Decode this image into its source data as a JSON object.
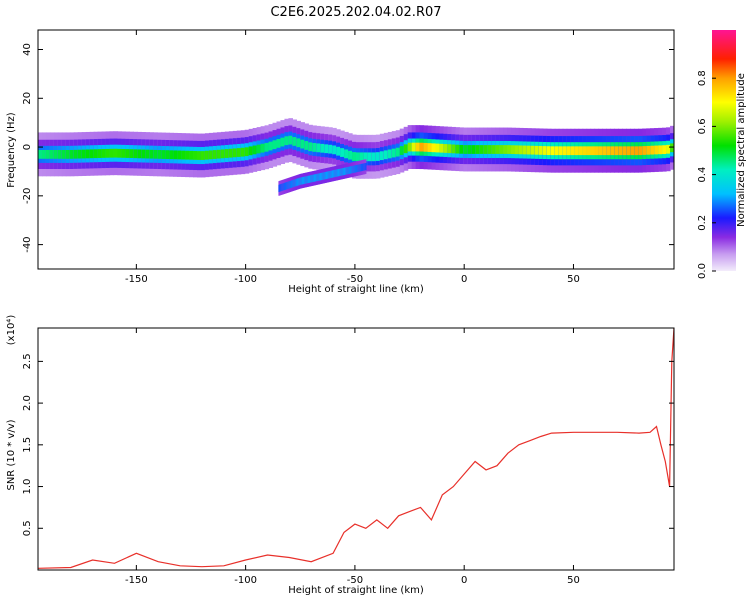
{
  "chart_data": [
    {
      "type": "heatmap",
      "title": "C2E6.2025.202.04.02.R07",
      "xlabel": "Height of straight line (km)",
      "ylabel": "Frequency (Hz)",
      "xlim": [
        -195,
        96
      ],
      "ylim": [
        -50,
        48
      ],
      "xticks": [
        -150,
        -100,
        -50,
        0,
        50
      ],
      "yticks": [
        -40,
        -20,
        0,
        20,
        40
      ],
      "colorbar": {
        "label": "Normalized spectral amplitude",
        "range": [
          0,
          1
        ],
        "ticks": [
          0.0,
          0.2,
          0.4,
          0.6,
          0.8
        ],
        "tick_labels": [
          "0.0",
          "0.2",
          "0.4",
          "0.6",
          "0.8"
        ],
        "colormap": "rainbow"
      },
      "ridge": {
        "x": [
          -195,
          -180,
          -160,
          -140,
          -120,
          -100,
          -90,
          -80,
          -70,
          -60,
          -50,
          -40,
          -30,
          -25,
          -20,
          0,
          20,
          40,
          60,
          80,
          93,
          96
        ],
        "y": [
          -3,
          -3,
          -2.5,
          -3,
          -3.5,
          -2,
          0,
          3,
          0,
          -1,
          -4,
          -4,
          -2,
          0,
          0,
          -1,
          -1,
          -1.5,
          -1.5,
          -1.5,
          -1,
          0
        ],
        "amplitude": [
          0.45,
          0.5,
          0.55,
          0.5,
          0.55,
          0.55,
          0.45,
          0.45,
          0.45,
          0.4,
          0.45,
          0.4,
          0.45,
          0.6,
          0.8,
          0.5,
          0.6,
          0.7,
          0.75,
          0.8,
          0.7,
          0.5
        ]
      },
      "branch": {
        "x": [
          -85,
          -75,
          -65,
          -55,
          -45
        ],
        "y": [
          -17,
          -14,
          -12,
          -10,
          -8
        ],
        "amplitude": [
          0.25,
          0.3,
          0.3,
          0.3,
          0.25
        ]
      }
    },
    {
      "type": "line",
      "xlabel": "Height of straight line (km)",
      "ylabel": "SNR (10 * v/v)",
      "multiplier": "(x10⁴)",
      "xlim": [
        -195,
        96
      ],
      "ylim": [
        0,
        2.9
      ],
      "xticks": [
        -150,
        -100,
        -50,
        0,
        50
      ],
      "yticks": [
        0.5,
        1.0,
        1.5,
        2.0,
        2.5
      ],
      "ytick_labels": [
        "0.5",
        "1.0",
        "1.5",
        "2.0",
        "2.5"
      ],
      "series": [
        {
          "color": "#e8302a",
          "x": [
            -195,
            -180,
            -170,
            -160,
            -150,
            -140,
            -130,
            -120,
            -110,
            -100,
            -90,
            -80,
            -70,
            -60,
            -55,
            -50,
            -45,
            -40,
            -35,
            -30,
            -25,
            -20,
            -15,
            -10,
            -5,
            0,
            5,
            10,
            15,
            20,
            25,
            30,
            35,
            40,
            50,
            60,
            70,
            80,
            85,
            88,
            90,
            92,
            94,
            95,
            96
          ],
          "y": [
            0.02,
            0.03,
            0.12,
            0.08,
            0.2,
            0.1,
            0.05,
            0.04,
            0.05,
            0.12,
            0.18,
            0.15,
            0.1,
            0.2,
            0.45,
            0.55,
            0.5,
            0.6,
            0.5,
            0.65,
            0.7,
            0.75,
            0.6,
            0.9,
            1.0,
            1.15,
            1.3,
            1.2,
            1.25,
            1.4,
            1.5,
            1.55,
            1.6,
            1.64,
            1.65,
            1.65,
            1.65,
            1.64,
            1.65,
            1.72,
            1.5,
            1.3,
            1.0,
            2.5,
            2.9
          ]
        }
      ]
    }
  ]
}
